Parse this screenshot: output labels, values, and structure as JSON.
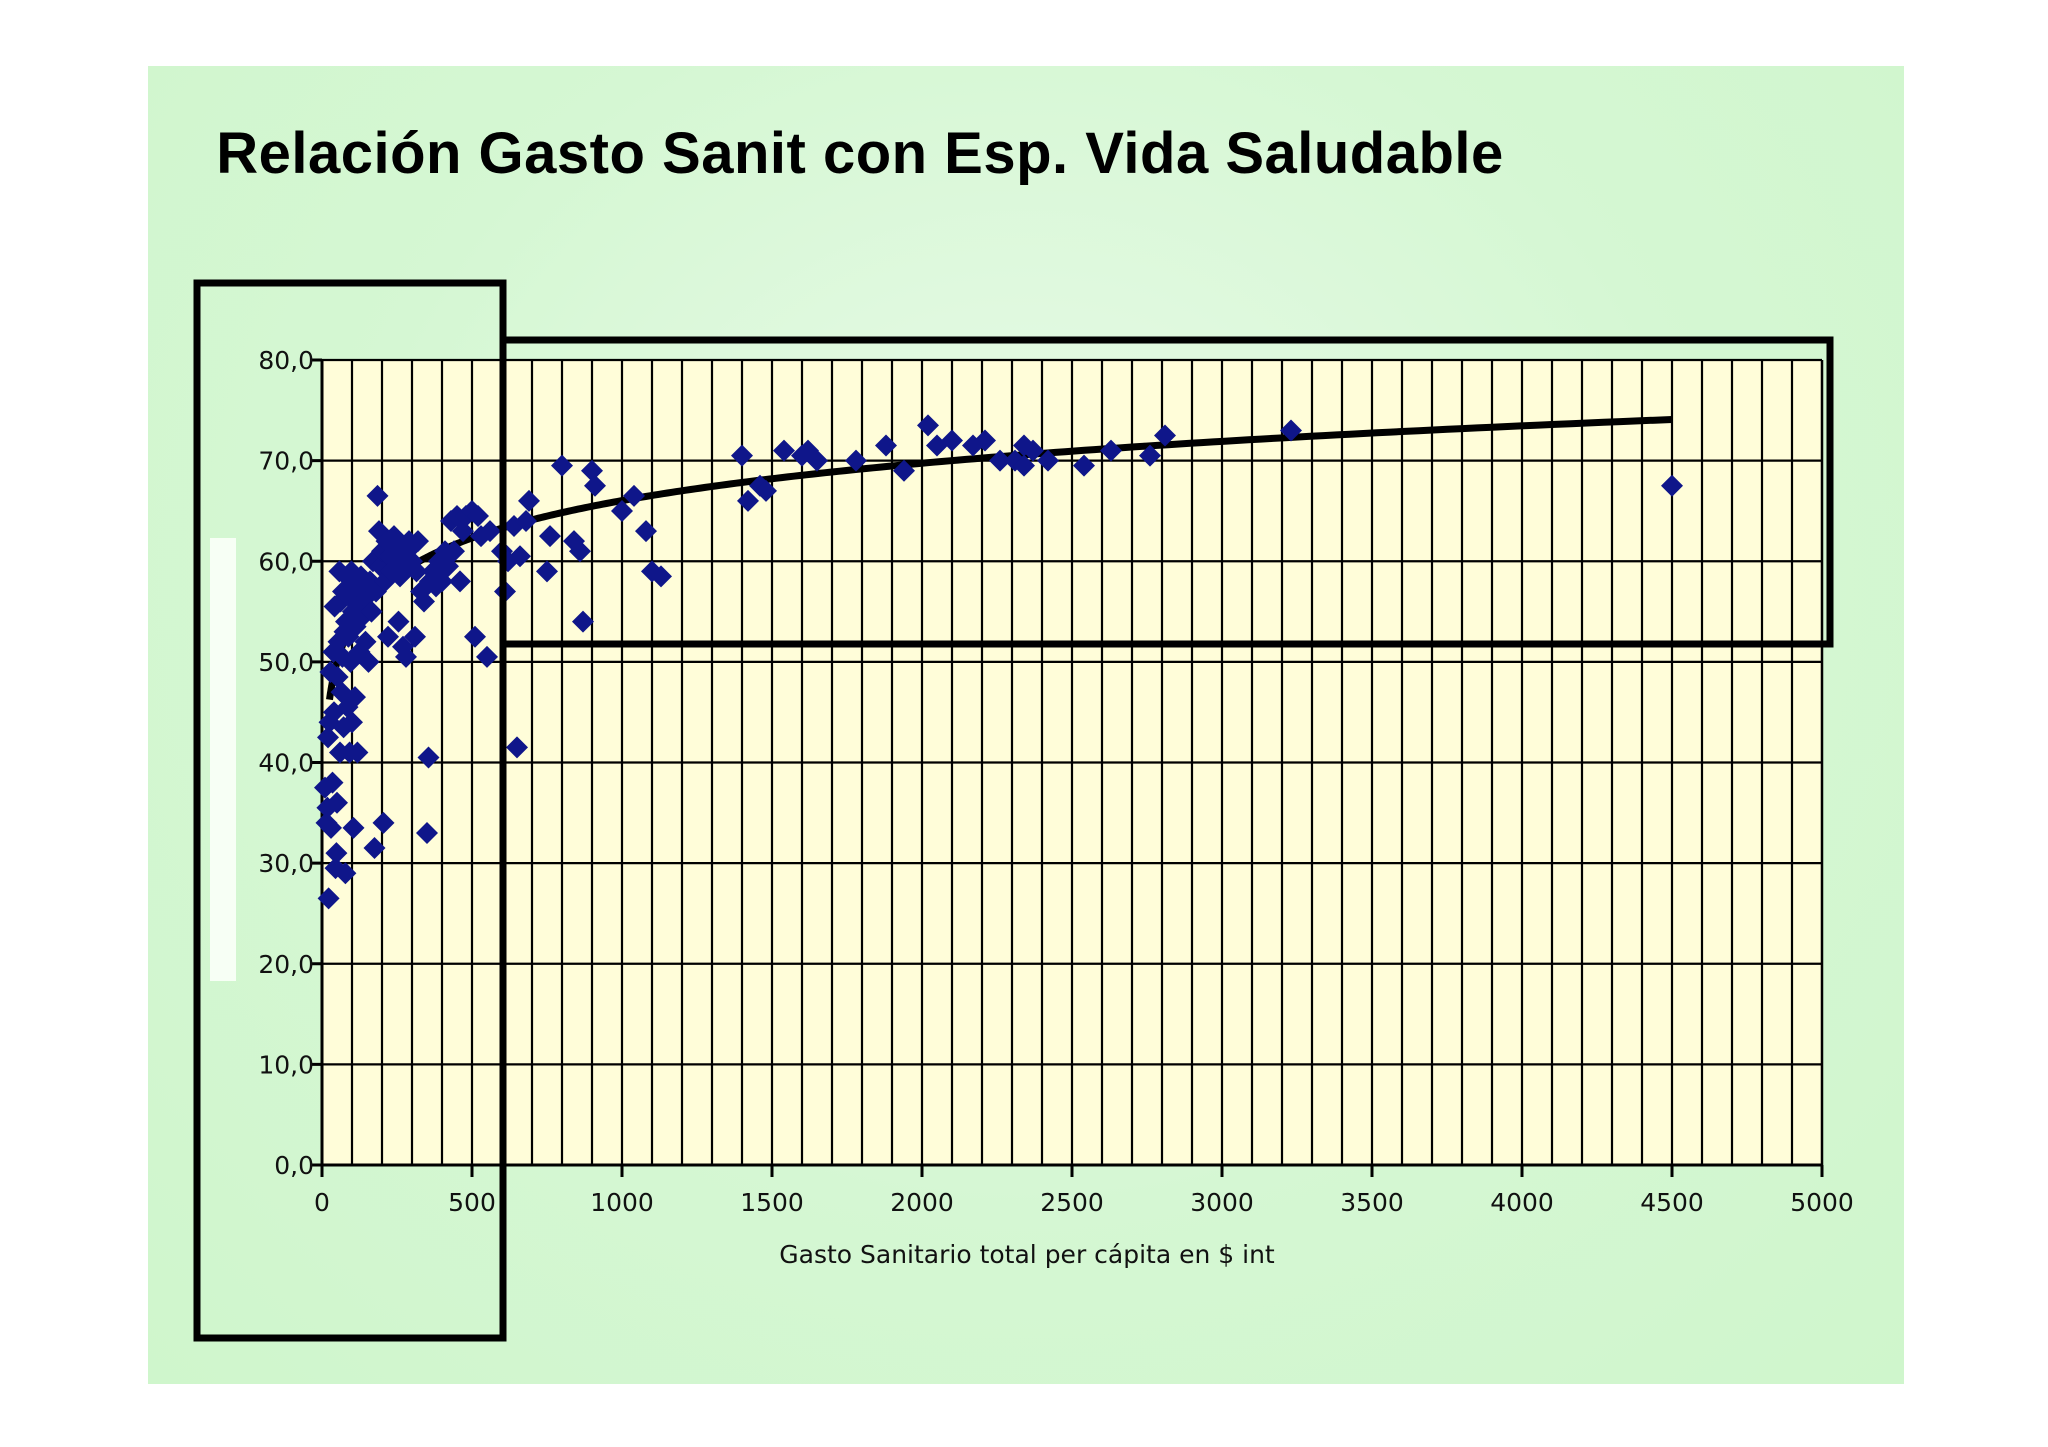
{
  "chart_data": {
    "type": "scatter",
    "title": "Relación Gasto Sanit con Esp. Vida Saludable",
    "xlabel": "Gasto Sanitario total per cápita en $ int",
    "ylabel": "",
    "xlim": [
      0,
      5000
    ],
    "ylim": [
      0,
      80
    ],
    "x_ticks": [
      "0",
      "500",
      "1000",
      "1500",
      "2000",
      "2500",
      "3000",
      "3500",
      "4000",
      "4500",
      "5000"
    ],
    "y_ticks": [
      "0,0",
      "10,0",
      "20,0",
      "30,0",
      "40,0",
      "50,0",
      "60,0",
      "70,0",
      "80,0"
    ],
    "grid": true,
    "colors": {
      "points": "#0f168a",
      "trend": "#000000",
      "plot_bg": "#fffdd9",
      "grid": "#000000",
      "highlight_box": "#000000"
    },
    "series": [
      {
        "type": "scatter",
        "points": [
          [
            10,
            37.5
          ],
          [
            15,
            34
          ],
          [
            18,
            35.5
          ],
          [
            20,
            42.5
          ],
          [
            22,
            26.5
          ],
          [
            25,
            44
          ],
          [
            28,
            49
          ],
          [
            30,
            33.5
          ],
          [
            35,
            38
          ],
          [
            38,
            51
          ],
          [
            40,
            45
          ],
          [
            42,
            55.5
          ],
          [
            45,
            29.5
          ],
          [
            48,
            31
          ],
          [
            50,
            36
          ],
          [
            52,
            48.5
          ],
          [
            55,
            52
          ],
          [
            58,
            59
          ],
          [
            60,
            41
          ],
          [
            62,
            56
          ],
          [
            65,
            47
          ],
          [
            68,
            50.5
          ],
          [
            70,
            57
          ],
          [
            72,
            43.5
          ],
          [
            75,
            53
          ],
          [
            78,
            29
          ],
          [
            80,
            54
          ],
          [
            82,
            58.5
          ],
          [
            85,
            45.5
          ],
          [
            88,
            52.5
          ],
          [
            90,
            56.5
          ],
          [
            92,
            41
          ],
          [
            95,
            50
          ],
          [
            98,
            59
          ],
          [
            100,
            44
          ],
          [
            103,
            55
          ],
          [
            105,
            33.5
          ],
          [
            108,
            57.5
          ],
          [
            110,
            46.5
          ],
          [
            112,
            53.5
          ],
          [
            115,
            58
          ],
          [
            118,
            41
          ],
          [
            120,
            55.5
          ],
          [
            122,
            57
          ],
          [
            125,
            51
          ],
          [
            128,
            56
          ],
          [
            130,
            58.5
          ],
          [
            135,
            54.5
          ],
          [
            140,
            57.5
          ],
          [
            145,
            52
          ],
          [
            150,
            56.5
          ],
          [
            155,
            50
          ],
          [
            160,
            58
          ],
          [
            165,
            55
          ],
          [
            170,
            60
          ],
          [
            175,
            31.5
          ],
          [
            180,
            57
          ],
          [
            185,
            66.5
          ],
          [
            190,
            63
          ],
          [
            195,
            59.5
          ],
          [
            200,
            61
          ],
          [
            205,
            34
          ],
          [
            210,
            58
          ],
          [
            215,
            62
          ],
          [
            220,
            52.5
          ],
          [
            225,
            60.5
          ],
          [
            230,
            59
          ],
          [
            235,
            61.5
          ],
          [
            240,
            62.5
          ],
          [
            250,
            60
          ],
          [
            255,
            54
          ],
          [
            260,
            58.5
          ],
          [
            265,
            61
          ],
          [
            270,
            51.5
          ],
          [
            275,
            59.5
          ],
          [
            280,
            50.5
          ],
          [
            285,
            61
          ],
          [
            290,
            62
          ],
          [
            300,
            60
          ],
          [
            310,
            52.5
          ],
          [
            315,
            59
          ],
          [
            320,
            62
          ],
          [
            330,
            57
          ],
          [
            340,
            56
          ],
          [
            350,
            33
          ],
          [
            355,
            40.5
          ],
          [
            360,
            58
          ],
          [
            370,
            59
          ],
          [
            380,
            57.5
          ],
          [
            390,
            60
          ],
          [
            400,
            58
          ],
          [
            410,
            61
          ],
          [
            420,
            59.5
          ],
          [
            430,
            64
          ],
          [
            440,
            61
          ],
          [
            450,
            64.5
          ],
          [
            460,
            58
          ],
          [
            470,
            63
          ],
          [
            480,
            64.5
          ],
          [
            500,
            65
          ],
          [
            510,
            52.5
          ],
          [
            520,
            64.5
          ],
          [
            530,
            62.5
          ],
          [
            550,
            50.5
          ],
          [
            560,
            63
          ],
          [
            600,
            61
          ],
          [
            610,
            57
          ],
          [
            620,
            60
          ],
          [
            640,
            63.5
          ],
          [
            650,
            41.5
          ],
          [
            660,
            60.5
          ],
          [
            680,
            64
          ],
          [
            690,
            66
          ],
          [
            750,
            59
          ],
          [
            760,
            62.5
          ],
          [
            800,
            69.5
          ],
          [
            840,
            62
          ],
          [
            860,
            61
          ],
          [
            870,
            54
          ],
          [
            900,
            69
          ],
          [
            910,
            67.5
          ],
          [
            1000,
            65
          ],
          [
            1040,
            66.5
          ],
          [
            1080,
            63
          ],
          [
            1100,
            59
          ],
          [
            1130,
            58.5
          ],
          [
            1400,
            70.5
          ],
          [
            1420,
            66
          ],
          [
            1460,
            67.5
          ],
          [
            1480,
            67
          ],
          [
            1540,
            71
          ],
          [
            1600,
            70.5
          ],
          [
            1620,
            71
          ],
          [
            1650,
            70
          ],
          [
            1780,
            70
          ],
          [
            1880,
            71.5
          ],
          [
            1940,
            69
          ],
          [
            2020,
            73.5
          ],
          [
            2050,
            71.5
          ],
          [
            2100,
            72
          ],
          [
            2170,
            71.5
          ],
          [
            2210,
            72
          ],
          [
            2260,
            70
          ],
          [
            2310,
            70
          ],
          [
            2340,
            71.5
          ],
          [
            2340,
            69.5
          ],
          [
            2370,
            71
          ],
          [
            2420,
            70
          ],
          [
            2540,
            69.5
          ],
          [
            2630,
            71
          ],
          [
            2760,
            70.5
          ],
          [
            2810,
            72.5
          ],
          [
            3230,
            73
          ],
          [
            4500,
            67.5
          ]
        ]
      }
    ],
    "trendline": {
      "type": "logarithmic",
      "a": 5.36,
      "b": 29.0,
      "x_start": 25,
      "x_end": 4500
    }
  }
}
